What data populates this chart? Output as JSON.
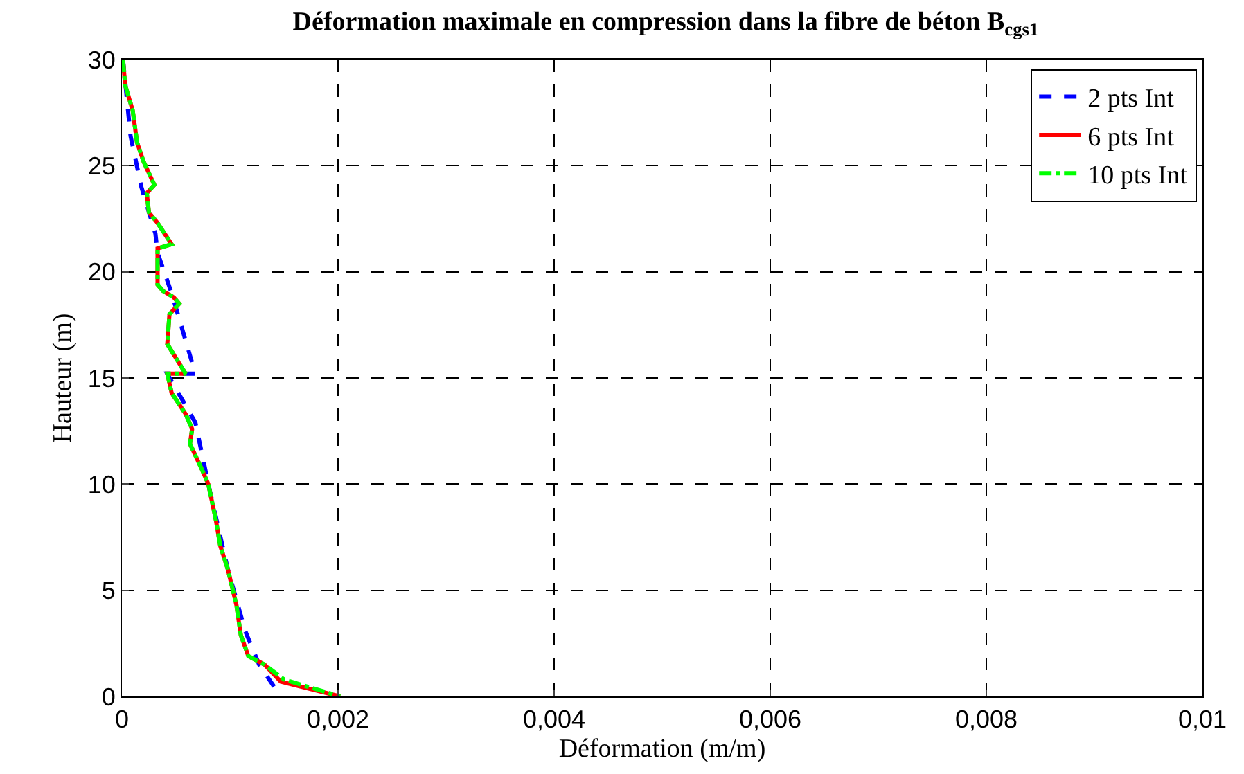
{
  "chart_data": {
    "type": "line",
    "title": "Déformation maximale en compression dans la fibre de béton B$_{cgs1}$",
    "xlabel": "Déformation (m/m)",
    "ylabel": "Hauteur (m)",
    "xlim": [
      0,
      0.01
    ],
    "xticks": [
      0,
      {
        "value": 0.002,
        "label": "0,002"
      },
      {
        "value": 0.004,
        "label": "0,004"
      },
      {
        "value": 0.006,
        "label": "0,006"
      },
      {
        "value": 0.008,
        "label": "0,008"
      },
      {
        "value": 0.01,
        "label": "0,01"
      }
    ],
    "ylim": [
      0,
      30
    ],
    "yticks": [
      0,
      5,
      10,
      15,
      20,
      25,
      30
    ],
    "grid": true,
    "legend": "top right",
    "marker": "none",
    "series": [
      {
        "name": "2 pts Int",
        "color": "#0000ff",
        "line_style": "dashed",
        "x": [
          1e-05,
          8e-05,
          0.00018,
          0.00031,
          0.00033,
          0.00046,
          0.00068,
          0.00042,
          0.00068,
          0.0008,
          0.00098,
          0.00114,
          0.00127,
          0.00147
        ],
        "values": [
          30,
          26.4,
          24,
          21.8,
          20.9,
          19,
          15.2,
          15.2,
          12.9,
          10,
          6,
          3.1,
          1.5,
          0
        ]
      },
      {
        "name": "6 pts Int",
        "color": "#ff0000",
        "line_style": "solid",
        "x": [
          1e-05,
          3e-05,
          0.0001,
          0.00014,
          0.0002,
          0.0003,
          0.00023,
          0.00025,
          0.00033,
          0.00046,
          0.00033,
          0.00033,
          0.00038,
          0.00048,
          0.00053,
          0.00044,
          0.00042,
          0.00059,
          0.00042,
          0.00046,
          0.00059,
          0.00065,
          0.00063,
          0.00074,
          0.0008,
          0.00087,
          0.00091,
          0.00098,
          0.00106,
          0.0011,
          0.00117,
          0.00132,
          0.00147,
          0.00202
        ],
        "values": [
          30,
          28.8,
          27.6,
          26.1,
          25.2,
          24.1,
          23.7,
          22.8,
          22.3,
          21.3,
          21.1,
          19.4,
          19.1,
          18.8,
          18.5,
          18,
          16.6,
          15.2,
          15.2,
          14.3,
          13.3,
          12.6,
          11.9,
          10.7,
          10,
          8.3,
          7.1,
          6,
          4.3,
          2.9,
          1.9,
          1.5,
          0.7,
          0
        ]
      },
      {
        "name": "10 pts Int",
        "color": "#00ff00",
        "line_style": "dashdot",
        "x": [
          1e-05,
          3e-05,
          0.0001,
          0.00014,
          0.0002,
          0.0003,
          0.00023,
          0.00025,
          0.00033,
          0.00046,
          0.00033,
          0.00033,
          0.00038,
          0.00048,
          0.00053,
          0.00044,
          0.00042,
          0.00059,
          0.00042,
          0.00046,
          0.00059,
          0.00065,
          0.00063,
          0.00074,
          0.0008,
          0.00087,
          0.00091,
          0.00098,
          0.00106,
          0.0011,
          0.00117,
          0.00132,
          0.0015,
          0.00202
        ],
        "values": [
          30,
          28.8,
          27.6,
          26.1,
          25.2,
          24.1,
          23.7,
          22.8,
          22.3,
          21.3,
          21.1,
          19.4,
          19.1,
          18.8,
          18.5,
          18,
          16.6,
          15.2,
          15.2,
          14.3,
          13.3,
          12.6,
          11.9,
          10.7,
          10,
          8.3,
          7.1,
          6,
          4.3,
          2.9,
          1.9,
          1.5,
          0.8,
          0
        ]
      }
    ]
  }
}
